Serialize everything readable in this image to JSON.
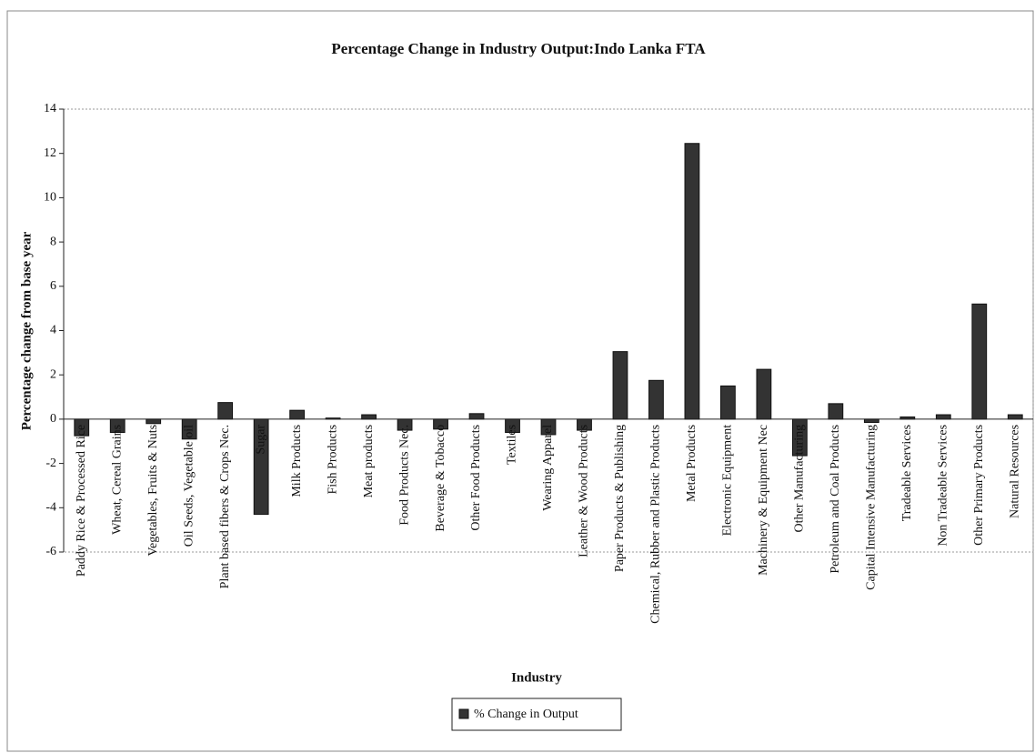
{
  "chart_data": {
    "type": "bar",
    "title": "Percentage Change in Industry Output:Indo Lanka FTA",
    "x_label": "Industry",
    "y_label": "Percentage change from base year",
    "categories": [
      "Paddy Rice & Processed Rice",
      "Wheat, Cereal Grains",
      "Vegetables, Fruits & Nuts",
      "Oil Seeds, Vegetable oil",
      "Plant based fibers & Crops Nec.",
      "Sugar",
      "Milk Products",
      "Fish Products",
      "Meat products",
      "Food Products Nec.",
      "Beverage & Tobacco",
      "Other Food Products",
      "Textiles",
      "Wearing Apparel",
      "Leather & Wood Products",
      "Paper Products & Publishing",
      "Chemical, Rubber and Plastic Products",
      "Metal Products",
      "Electronic Equipment",
      "Machinery & Equipment Nec",
      "Other Manufacturing",
      "Petroleum and Coal Products",
      "Capital Intensive Manufacturing",
      "Tradeable Services",
      "Non Tradeable Services",
      "Other Primary Products",
      "Natural Resources"
    ],
    "series": [
      {
        "name": "% Change in Output",
        "color": "#333333",
        "values": [
          -0.75,
          -0.6,
          -0.2,
          -0.9,
          0.75,
          -4.3,
          0.4,
          0.05,
          0.2,
          -0.5,
          -0.45,
          0.25,
          -0.6,
          -0.7,
          -0.5,
          3.05,
          1.75,
          12.45,
          1.5,
          2.25,
          -1.65,
          0.7,
          -0.15,
          0.1,
          0.2,
          5.2,
          0.2
        ]
      }
    ],
    "ylim": [
      -6,
      14
    ],
    "yticks": [
      -6,
      -4,
      -2,
      0,
      2,
      4,
      6,
      8,
      10,
      12,
      14
    ],
    "grid": false,
    "legend": "bottom"
  }
}
